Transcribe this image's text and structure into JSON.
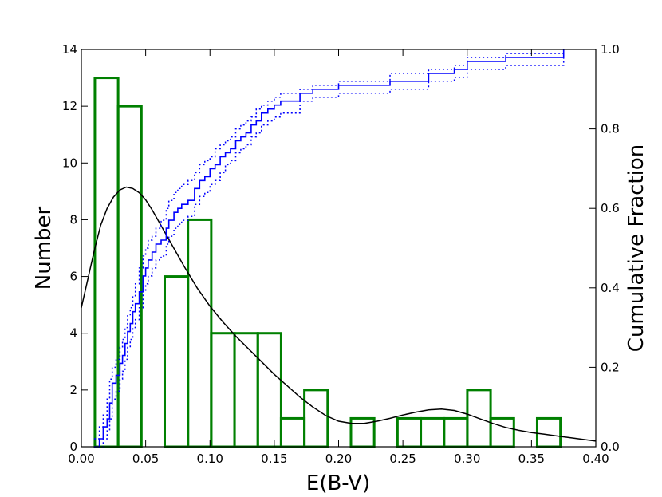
{
  "chart_data": {
    "type": "bar",
    "xlabel": "E(B-V)",
    "ylabel": "Number",
    "y2label": "Cumulative Fraction",
    "xlim": [
      0.0,
      0.4
    ],
    "ylim": [
      0,
      14
    ],
    "y2lim": [
      0.0,
      1.0
    ],
    "x_ticks": [
      "0.00",
      "0.05",
      "0.10",
      "0.15",
      "0.20",
      "0.25",
      "0.30",
      "0.35",
      "0.40"
    ],
    "y_ticks": [
      "0",
      "2",
      "4",
      "6",
      "8",
      "10",
      "12",
      "14"
    ],
    "y2_ticks": [
      "0.0",
      "0.2",
      "0.4",
      "0.6",
      "0.8",
      "1.0"
    ],
    "grid": false,
    "legend": "none",
    "colors": {
      "histogram": "#008000",
      "cumulative": "#0000ff",
      "kde": "#000000"
    },
    "histogram": {
      "bin_edges": [
        0.0105,
        0.0286,
        0.0467,
        0.0648,
        0.0829,
        0.101,
        0.1191,
        0.1372,
        0.1553,
        0.1734,
        0.1915,
        0.2096,
        0.2277,
        0.2458,
        0.2639,
        0.282,
        0.3001,
        0.3182,
        0.3363,
        0.3544,
        0.3725
      ],
      "counts": [
        13,
        12,
        0,
        6,
        8,
        4,
        4,
        4,
        1,
        2,
        0,
        1,
        0,
        1,
        1,
        1,
        2,
        1,
        0,
        1,
        1
      ]
    },
    "cumulative": {
      "x": [
        0.01,
        0.014,
        0.017,
        0.02,
        0.022,
        0.024,
        0.027,
        0.03,
        0.032,
        0.034,
        0.036,
        0.038,
        0.04,
        0.042,
        0.045,
        0.048,
        0.05,
        0.052,
        0.055,
        0.058,
        0.062,
        0.066,
        0.068,
        0.072,
        0.075,
        0.078,
        0.083,
        0.088,
        0.092,
        0.096,
        0.1,
        0.104,
        0.108,
        0.112,
        0.116,
        0.12,
        0.124,
        0.128,
        0.132,
        0.136,
        0.14,
        0.145,
        0.15,
        0.155,
        0.17,
        0.18,
        0.2,
        0.24,
        0.27,
        0.29,
        0.3,
        0.33,
        0.375
      ],
      "y": [
        0.0,
        0.02,
        0.05,
        0.07,
        0.11,
        0.16,
        0.18,
        0.21,
        0.23,
        0.26,
        0.29,
        0.31,
        0.34,
        0.36,
        0.39,
        0.43,
        0.45,
        0.47,
        0.49,
        0.51,
        0.52,
        0.55,
        0.57,
        0.59,
        0.6,
        0.61,
        0.62,
        0.65,
        0.67,
        0.68,
        0.7,
        0.71,
        0.73,
        0.74,
        0.75,
        0.77,
        0.78,
        0.79,
        0.81,
        0.82,
        0.84,
        0.85,
        0.86,
        0.87,
        0.89,
        0.9,
        0.91,
        0.92,
        0.94,
        0.95,
        0.97,
        0.98,
        1.0
      ],
      "upper_bound": [
        0.02,
        0.05,
        0.08,
        0.12,
        0.17,
        0.2,
        0.22,
        0.25,
        0.27,
        0.3,
        0.33,
        0.35,
        0.38,
        0.41,
        0.45,
        0.48,
        0.5,
        0.52,
        0.53,
        0.55,
        0.57,
        0.6,
        0.62,
        0.64,
        0.65,
        0.66,
        0.67,
        0.69,
        0.71,
        0.72,
        0.73,
        0.75,
        0.76,
        0.77,
        0.78,
        0.8,
        0.81,
        0.82,
        0.83,
        0.85,
        0.86,
        0.87,
        0.88,
        0.89,
        0.9,
        0.91,
        0.92,
        0.94,
        0.95,
        0.96,
        0.98,
        0.99,
        1.0
      ],
      "lower_bound": [
        0.0,
        0.0,
        0.02,
        0.04,
        0.07,
        0.12,
        0.14,
        0.17,
        0.19,
        0.22,
        0.25,
        0.27,
        0.3,
        0.32,
        0.35,
        0.39,
        0.41,
        0.43,
        0.45,
        0.47,
        0.48,
        0.51,
        0.53,
        0.55,
        0.56,
        0.57,
        0.58,
        0.61,
        0.63,
        0.64,
        0.66,
        0.67,
        0.69,
        0.71,
        0.72,
        0.74,
        0.75,
        0.76,
        0.78,
        0.79,
        0.81,
        0.82,
        0.83,
        0.84,
        0.87,
        0.88,
        0.89,
        0.9,
        0.92,
        0.93,
        0.95,
        0.96,
        0.98
      ]
    },
    "kde": {
      "x": [
        0.0,
        0.005,
        0.01,
        0.015,
        0.02,
        0.025,
        0.03,
        0.035,
        0.04,
        0.045,
        0.05,
        0.055,
        0.06,
        0.07,
        0.08,
        0.09,
        0.1,
        0.11,
        0.12,
        0.13,
        0.14,
        0.15,
        0.16,
        0.17,
        0.18,
        0.19,
        0.2,
        0.21,
        0.22,
        0.23,
        0.24,
        0.25,
        0.26,
        0.27,
        0.28,
        0.29,
        0.3,
        0.31,
        0.32,
        0.33,
        0.34,
        0.35,
        0.36,
        0.37,
        0.38,
        0.39,
        0.4
      ],
      "y": [
        4.9,
        5.9,
        6.9,
        7.8,
        8.4,
        8.8,
        9.05,
        9.15,
        9.1,
        8.95,
        8.7,
        8.35,
        7.95,
        7.15,
        6.35,
        5.6,
        4.95,
        4.4,
        3.9,
        3.45,
        3.0,
        2.55,
        2.15,
        1.75,
        1.4,
        1.1,
        0.9,
        0.82,
        0.82,
        0.9,
        1.0,
        1.12,
        1.22,
        1.3,
        1.33,
        1.28,
        1.15,
        0.98,
        0.82,
        0.68,
        0.58,
        0.5,
        0.44,
        0.38,
        0.32,
        0.26,
        0.2
      ]
    }
  }
}
